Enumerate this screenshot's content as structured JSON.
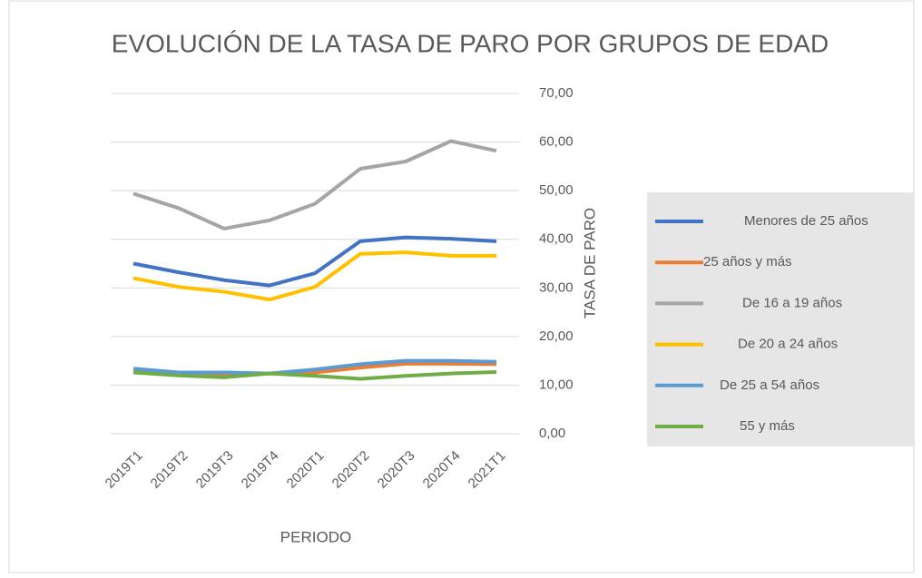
{
  "chart_data": {
    "type": "line",
    "title": "EVOLUCIÓN DE LA TASA DE PARO POR GRUPOS DE EDAD",
    "x_label": "PERIODO",
    "y_label": "TASA DE PARO",
    "categories": [
      "2019T1",
      "2019T2",
      "2019T3",
      "2019T4",
      "2020T1",
      "2020T2",
      "2020T3",
      "2020T4",
      "2021T1"
    ],
    "series": [
      {
        "name": "Menores de 25 años",
        "color": "#4472c4",
        "values": [
          35.0,
          33.2,
          31.6,
          30.5,
          33.0,
          39.6,
          40.4,
          40.1,
          39.6
        ]
      },
      {
        "name": "25 años y más",
        "color": "#ed7d31",
        "values": [
          12.8,
          12.4,
          12.0,
          12.4,
          12.6,
          13.6,
          14.4,
          14.4,
          14.3
        ]
      },
      {
        "name": "De 16 a 19 años",
        "color": "#a5a5a5",
        "values": [
          49.4,
          46.4,
          42.2,
          43.9,
          47.3,
          54.5,
          56.0,
          60.2,
          58.2
        ]
      },
      {
        "name": "De 20 a 24 años",
        "color": "#ffc000",
        "values": [
          32.0,
          30.2,
          29.2,
          27.6,
          30.2,
          37.0,
          37.3,
          36.6,
          36.6
        ]
      },
      {
        "name": "De 25 a 54 años",
        "color": "#5b9bd5",
        "values": [
          13.4,
          12.6,
          12.6,
          12.4,
          13.2,
          14.3,
          15.0,
          15.0,
          14.8
        ]
      },
      {
        "name": "55 y más",
        "color": "#70ad47",
        "values": [
          12.6,
          12.0,
          11.6,
          12.4,
          11.9,
          11.3,
          11.9,
          12.4,
          12.7
        ]
      }
    ],
    "ylim": [
      0,
      70
    ],
    "yticks": [
      {
        "value": 0,
        "label": "0,00"
      },
      {
        "value": 10,
        "label": "10,00"
      },
      {
        "value": 20,
        "label": "20,00"
      },
      {
        "value": 30,
        "label": "30,00"
      },
      {
        "value": 40,
        "label": "40,00"
      },
      {
        "value": 50,
        "label": "50,00"
      },
      {
        "value": 60,
        "label": "60,00"
      },
      {
        "value": 70,
        "label": "70,00"
      }
    ],
    "grid": true,
    "legend": "right"
  }
}
